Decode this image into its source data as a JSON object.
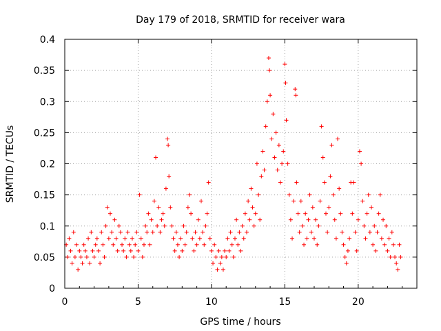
{
  "chart_data": {
    "type": "scatter",
    "title": "Day 179 of 2018, SRMTID for receiver wara",
    "xlabel": "GPS time / hours",
    "ylabel": "SRMTID / TECUs",
    "xlim": [
      0,
      24
    ],
    "ylim": [
      0,
      0.4
    ],
    "x_ticks": [
      0,
      5,
      10,
      15,
      20
    ],
    "y_ticks": [
      0,
      0.05,
      0.1,
      0.15,
      0.2,
      0.25,
      0.3,
      0.35,
      0.4
    ],
    "x_tick_labels": [
      "0",
      "5",
      "10",
      "15",
      "20"
    ],
    "y_tick_labels": [
      "0",
      "0.05",
      "0.1",
      "0.15",
      "0.2",
      "0.25",
      "0.3",
      "0.35",
      "0.4"
    ],
    "grid": true,
    "marker": "+",
    "color": "#ff0000",
    "series": [
      {
        "name": "wara",
        "points": [
          [
            0.1,
            0.07
          ],
          [
            0.2,
            0.05
          ],
          [
            0.3,
            0.08
          ],
          [
            0.4,
            0.06
          ],
          [
            0.5,
            0.04
          ],
          [
            0.6,
            0.09
          ],
          [
            0.7,
            0.05
          ],
          [
            0.8,
            0.07
          ],
          [
            0.9,
            0.03
          ],
          [
            1.0,
            0.06
          ],
          [
            1.1,
            0.05
          ],
          [
            1.2,
            0.04
          ],
          [
            1.3,
            0.07
          ],
          [
            1.4,
            0.06
          ],
          [
            1.5,
            0.05
          ],
          [
            1.6,
            0.08
          ],
          [
            1.7,
            0.04
          ],
          [
            1.8,
            0.09
          ],
          [
            1.9,
            0.06
          ],
          [
            2.0,
            0.05
          ],
          [
            2.1,
            0.07
          ],
          [
            2.2,
            0.08
          ],
          [
            2.3,
            0.06
          ],
          [
            2.4,
            0.04
          ],
          [
            2.5,
            0.09
          ],
          [
            2.6,
            0.07
          ],
          [
            2.7,
            0.05
          ],
          [
            2.8,
            0.1
          ],
          [
            2.9,
            0.13
          ],
          [
            3.0,
            0.08
          ],
          [
            3.1,
            0.12
          ],
          [
            3.2,
            0.09
          ],
          [
            3.3,
            0.07
          ],
          [
            3.4,
            0.11
          ],
          [
            3.5,
            0.08
          ],
          [
            3.6,
            0.06
          ],
          [
            3.7,
            0.1
          ],
          [
            3.8,
            0.09
          ],
          [
            3.9,
            0.07
          ],
          [
            4.0,
            0.06
          ],
          [
            4.1,
            0.08
          ],
          [
            4.2,
            0.05
          ],
          [
            4.3,
            0.09
          ],
          [
            4.4,
            0.07
          ],
          [
            4.5,
            0.06
          ],
          [
            4.6,
            0.08
          ],
          [
            4.7,
            0.05
          ],
          [
            4.8,
            0.07
          ],
          [
            4.9,
            0.09
          ],
          [
            5.0,
            0.06
          ],
          [
            5.1,
            0.15
          ],
          [
            5.2,
            0.08
          ],
          [
            5.3,
            0.05
          ],
          [
            5.4,
            0.07
          ],
          [
            5.5,
            0.1
          ],
          [
            5.6,
            0.09
          ],
          [
            5.7,
            0.12
          ],
          [
            5.8,
            0.07
          ],
          [
            5.9,
            0.11
          ],
          [
            6.0,
            0.09
          ],
          [
            6.1,
            0.14
          ],
          [
            6.2,
            0.21
          ],
          [
            6.3,
            0.1
          ],
          [
            6.4,
            0.13
          ],
          [
            6.5,
            0.09
          ],
          [
            6.6,
            0.11
          ],
          [
            6.7,
            0.12
          ],
          [
            6.8,
            0.1
          ],
          [
            6.9,
            0.16
          ],
          [
            7.0,
            0.24
          ],
          [
            7.05,
            0.23
          ],
          [
            7.1,
            0.18
          ],
          [
            7.2,
            0.13
          ],
          [
            7.3,
            0.1
          ],
          [
            7.4,
            0.08
          ],
          [
            7.5,
            0.06
          ],
          [
            7.6,
            0.09
          ],
          [
            7.7,
            0.07
          ],
          [
            7.8,
            0.05
          ],
          [
            7.9,
            0.08
          ],
          [
            8.0,
            0.06
          ],
          [
            8.1,
            0.1
          ],
          [
            8.2,
            0.07
          ],
          [
            8.3,
            0.09
          ],
          [
            8.4,
            0.13
          ],
          [
            8.5,
            0.15
          ],
          [
            8.6,
            0.12
          ],
          [
            8.7,
            0.08
          ],
          [
            8.8,
            0.06
          ],
          [
            8.9,
            0.09
          ],
          [
            9.0,
            0.07
          ],
          [
            9.1,
            0.11
          ],
          [
            9.2,
            0.08
          ],
          [
            9.3,
            0.14
          ],
          [
            9.4,
            0.09
          ],
          [
            9.5,
            0.07
          ],
          [
            9.6,
            0.1
          ],
          [
            9.7,
            0.12
          ],
          [
            9.8,
            0.17
          ],
          [
            9.9,
            0.08
          ],
          [
            10.0,
            0.06
          ],
          [
            10.1,
            0.04
          ],
          [
            10.2,
            0.07
          ],
          [
            10.3,
            0.05
          ],
          [
            10.4,
            0.03
          ],
          [
            10.5,
            0.06
          ],
          [
            10.6,
            0.04
          ],
          [
            10.7,
            0.05
          ],
          [
            10.8,
            0.03
          ],
          [
            10.9,
            0.06
          ],
          [
            11.0,
            0.05
          ],
          [
            11.1,
            0.08
          ],
          [
            11.2,
            0.06
          ],
          [
            11.3,
            0.09
          ],
          [
            11.4,
            0.07
          ],
          [
            11.5,
            0.05
          ],
          [
            11.6,
            0.08
          ],
          [
            11.7,
            0.11
          ],
          [
            11.8,
            0.07
          ],
          [
            11.9,
            0.09
          ],
          [
            12.0,
            0.06
          ],
          [
            12.1,
            0.1
          ],
          [
            12.2,
            0.08
          ],
          [
            12.3,
            0.12
          ],
          [
            12.4,
            0.09
          ],
          [
            12.5,
            0.14
          ],
          [
            12.6,
            0.11
          ],
          [
            12.7,
            0.16
          ],
          [
            12.8,
            0.13
          ],
          [
            12.9,
            0.1
          ],
          [
            13.0,
            0.12
          ],
          [
            13.1,
            0.2
          ],
          [
            13.2,
            0.15
          ],
          [
            13.3,
            0.11
          ],
          [
            13.4,
            0.18
          ],
          [
            13.5,
            0.22
          ],
          [
            13.6,
            0.19
          ],
          [
            13.7,
            0.26
          ],
          [
            13.8,
            0.3
          ],
          [
            13.9,
            0.37
          ],
          [
            13.95,
            0.35
          ],
          [
            14.0,
            0.31
          ],
          [
            14.1,
            0.24
          ],
          [
            14.2,
            0.28
          ],
          [
            14.3,
            0.21
          ],
          [
            14.4,
            0.25
          ],
          [
            14.5,
            0.19
          ],
          [
            14.6,
            0.23
          ],
          [
            14.7,
            0.17
          ],
          [
            14.8,
            0.2
          ],
          [
            14.9,
            0.22
          ],
          [
            15.0,
            0.36
          ],
          [
            15.05,
            0.33
          ],
          [
            15.1,
            0.27
          ],
          [
            15.2,
            0.2
          ],
          [
            15.3,
            0.15
          ],
          [
            15.4,
            0.11
          ],
          [
            15.5,
            0.08
          ],
          [
            15.6,
            0.14
          ],
          [
            15.7,
            0.32
          ],
          [
            15.75,
            0.31
          ],
          [
            15.8,
            0.17
          ],
          [
            15.9,
            0.12
          ],
          [
            16.0,
            0.09
          ],
          [
            16.1,
            0.14
          ],
          [
            16.2,
            0.1
          ],
          [
            16.3,
            0.07
          ],
          [
            16.4,
            0.12
          ],
          [
            16.5,
            0.08
          ],
          [
            16.6,
            0.11
          ],
          [
            16.7,
            0.15
          ],
          [
            16.8,
            0.09
          ],
          [
            16.9,
            0.13
          ],
          [
            17.0,
            0.08
          ],
          [
            17.1,
            0.11
          ],
          [
            17.2,
            0.07
          ],
          [
            17.3,
            0.1
          ],
          [
            17.4,
            0.14
          ],
          [
            17.5,
            0.26
          ],
          [
            17.6,
            0.21
          ],
          [
            17.7,
            0.17
          ],
          [
            17.8,
            0.12
          ],
          [
            17.9,
            0.09
          ],
          [
            18.0,
            0.13
          ],
          [
            18.1,
            0.18
          ],
          [
            18.2,
            0.23
          ],
          [
            18.3,
            0.15
          ],
          [
            18.4,
            0.11
          ],
          [
            18.5,
            0.08
          ],
          [
            18.6,
            0.24
          ],
          [
            18.7,
            0.16
          ],
          [
            18.8,
            0.12
          ],
          [
            18.9,
            0.09
          ],
          [
            19.0,
            0.07
          ],
          [
            19.1,
            0.05
          ],
          [
            19.2,
            0.04
          ],
          [
            19.3,
            0.06
          ],
          [
            19.4,
            0.08
          ],
          [
            19.5,
            0.17
          ],
          [
            19.6,
            0.12
          ],
          [
            19.7,
            0.17
          ],
          [
            19.8,
            0.09
          ],
          [
            19.9,
            0.06
          ],
          [
            20.0,
            0.11
          ],
          [
            20.1,
            0.22
          ],
          [
            20.2,
            0.2
          ],
          [
            20.3,
            0.14
          ],
          [
            20.4,
            0.1
          ],
          [
            20.5,
            0.08
          ],
          [
            20.6,
            0.12
          ],
          [
            20.7,
            0.15
          ],
          [
            20.8,
            0.09
          ],
          [
            20.9,
            0.13
          ],
          [
            21.0,
            0.07
          ],
          [
            21.1,
            0.1
          ],
          [
            21.2,
            0.06
          ],
          [
            21.3,
            0.09
          ],
          [
            21.4,
            0.12
          ],
          [
            21.5,
            0.15
          ],
          [
            21.6,
            0.08
          ],
          [
            21.7,
            0.11
          ],
          [
            21.8,
            0.07
          ],
          [
            21.9,
            0.1
          ],
          [
            22.0,
            0.06
          ],
          [
            22.1,
            0.08
          ],
          [
            22.2,
            0.05
          ],
          [
            22.3,
            0.09
          ],
          [
            22.4,
            0.07
          ],
          [
            22.5,
            0.05
          ],
          [
            22.6,
            0.04
          ],
          [
            22.7,
            0.03
          ],
          [
            22.8,
            0.07
          ],
          [
            22.9,
            0.05
          ]
        ]
      }
    ]
  }
}
